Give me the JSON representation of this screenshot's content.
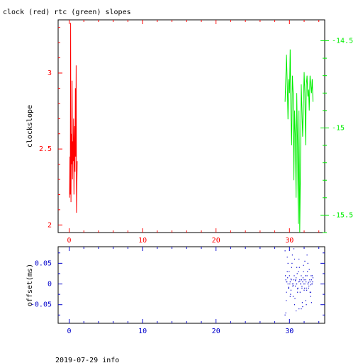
{
  "title": "clock (red) rtc (green) slopes",
  "footer": "2019-07-29 info",
  "colors": {
    "clock": "#ff0000",
    "rtc": "#00ee00",
    "offset": "#0000cc",
    "axis": "#000000"
  },
  "chart_data": [
    {
      "type": "line",
      "title": "clock (red) rtc (green) slopes",
      "xlabel": "",
      "ylabel": "clockslope",
      "xlim": [
        -1.5,
        34.8
      ],
      "ylim": [
        1.95,
        3.35
      ],
      "xticks": [
        "0",
        "10",
        "20",
        "30"
      ],
      "yticks": [
        "2",
        "2.5",
        "3"
      ],
      "y2lim": [
        -15.6,
        -14.38
      ],
      "y2ticks": [
        "-14.5",
        "-15",
        "-15.5"
      ],
      "grid": false,
      "series": [
        {
          "axis": "left",
          "x": [
            0.05,
            0.1,
            0.15,
            0.2,
            0.25,
            0.3,
            0.35,
            0.4,
            0.45,
            0.5,
            0.55,
            0.6,
            0.65,
            0.7,
            0.75,
            0.8,
            0.85,
            0.9,
            0.95,
            1.0,
            1.05,
            1.1
          ],
          "y": [
            2.18,
            2.45,
            2.2,
            3.33,
            2.15,
            2.6,
            2.4,
            2.95,
            2.3,
            2.55,
            2.42,
            2.7,
            2.2,
            2.5,
            2.65,
            2.35,
            2.9,
            2.45,
            3.05,
            2.08,
            2.25,
            2.42
          ]
        },
        {
          "axis": "right",
          "x": [
            29.4,
            29.6,
            29.7,
            29.8,
            29.9,
            30.0,
            30.1,
            30.2,
            30.3,
            30.4,
            30.5,
            30.6,
            30.7,
            30.8,
            30.9,
            31.0,
            31.1,
            31.2,
            31.3,
            31.4,
            31.5,
            31.6,
            31.7,
            31.8,
            31.9,
            32.0,
            32.1,
            32.2,
            32.3,
            32.4,
            32.5,
            32.6,
            32.7,
            32.8,
            32.9,
            33.0,
            33.1,
            33.2
          ],
          "y": [
            -14.85,
            -14.58,
            -14.75,
            -14.95,
            -14.72,
            -14.8,
            -14.55,
            -14.95,
            -15.1,
            -14.7,
            -14.8,
            -15.3,
            -14.9,
            -15.05,
            -15.4,
            -14.8,
            -15.1,
            -15.55,
            -14.9,
            -15.6,
            -15.2,
            -14.75,
            -14.9,
            -15.05,
            -14.85,
            -14.68,
            -14.8,
            -15.1,
            -14.75,
            -14.7,
            -14.82,
            -14.78,
            -14.9,
            -14.7,
            -14.75,
            -14.8,
            -14.72,
            -14.85
          ]
        }
      ]
    },
    {
      "type": "scatter",
      "xlabel": "",
      "ylabel": "offset(ms)",
      "xlim": [
        -1.5,
        34.8
      ],
      "ylim": [
        -0.095,
        0.09
      ],
      "xticks": [
        "0",
        "10",
        "20",
        "30"
      ],
      "yticks": [
        "0.05",
        "0",
        "-0.05"
      ],
      "grid": false,
      "series": [
        {
          "x": [
            29.4,
            29.5,
            29.6,
            29.7,
            29.8,
            29.9,
            30.0,
            30.1,
            30.2,
            30.3,
            30.4,
            30.5,
            30.6,
            30.7,
            30.8,
            30.9,
            31.0,
            31.1,
            31.2,
            31.3,
            31.4,
            31.5,
            31.6,
            31.7,
            31.8,
            31.9,
            32.0,
            32.1,
            32.2,
            32.3,
            32.4,
            32.5,
            32.6,
            32.7,
            32.8,
            32.9,
            33.0,
            33.1,
            33.2,
            29.45,
            29.55,
            29.65,
            29.75,
            29.85,
            29.95,
            30.05,
            30.15,
            30.25,
            30.35,
            30.45,
            30.55,
            30.65,
            30.75,
            30.85,
            30.95,
            31.05,
            31.15,
            31.25,
            31.35,
            31.45,
            31.55,
            31.65,
            31.75,
            31.85,
            31.95,
            32.05,
            32.15,
            32.25,
            32.35,
            32.45,
            32.55,
            32.65,
            32.75,
            32.85,
            32.95,
            33.05,
            33.15,
            29.5,
            29.8,
            30.1,
            30.4,
            30.7,
            31.0,
            31.3,
            31.6,
            31.9,
            32.2,
            32.5,
            32.8,
            33.1,
            29.6,
            29.9,
            30.2,
            30.5,
            30.8,
            31.1,
            31.4,
            31.7,
            32.0,
            32.3,
            32.6,
            32.9,
            29.4,
            30.6,
            31.8,
            32.4,
            29.7,
            30.9,
            32.1,
            33.0
          ],
          "y": [
            0.08,
            0.01,
            -0.02,
            0.03,
            0.0,
            -0.01,
            0.02,
            0.005,
            -0.015,
            0.04,
            0.0,
            -0.03,
            0.01,
            0.06,
            -0.005,
            0.015,
            0.0,
            -0.02,
            0.03,
            -0.06,
            0.01,
            0.0,
            0.02,
            -0.01,
            0.005,
            0.045,
            -0.015,
            0.0,
            0.01,
            -0.05,
            0.02,
            0.0,
            -0.01,
            0.035,
            0.005,
            -0.02,
            0.01,
            0.0,
            0.015,
            0.02,
            -0.04,
            0.005,
            0.015,
            -0.01,
            0.03,
            0.0,
            -0.025,
            0.01,
            0.05,
            -0.005,
            0.0,
            0.02,
            -0.035,
            0.01,
            0.0,
            0.025,
            -0.01,
            0.005,
            0.04,
            -0.02,
            0.0,
            0.01,
            -0.045,
            0.015,
            0.0,
            -0.01,
            0.02,
            0.005,
            -0.015,
            0.03,
            0.0,
            -0.005,
            0.01,
            -0.03,
            0.02,
            0.0,
            0.005,
            -0.07,
            0.05,
            -0.03,
            0.07,
            -0.05,
            0.04,
            0.06,
            -0.06,
            0.03,
            -0.04,
            0.05,
            -0.02,
            0.02,
            0.005,
            -0.008,
            0.012,
            -0.004,
            0.008,
            -0.012,
            0.006,
            -0.006,
            0.01,
            -0.01,
            0.004,
            -0.002,
            -0.075,
            0.085,
            -0.055,
            0.07,
            0.065,
            -0.065,
            0.055,
            -0.045
          ]
        }
      ]
    }
  ]
}
